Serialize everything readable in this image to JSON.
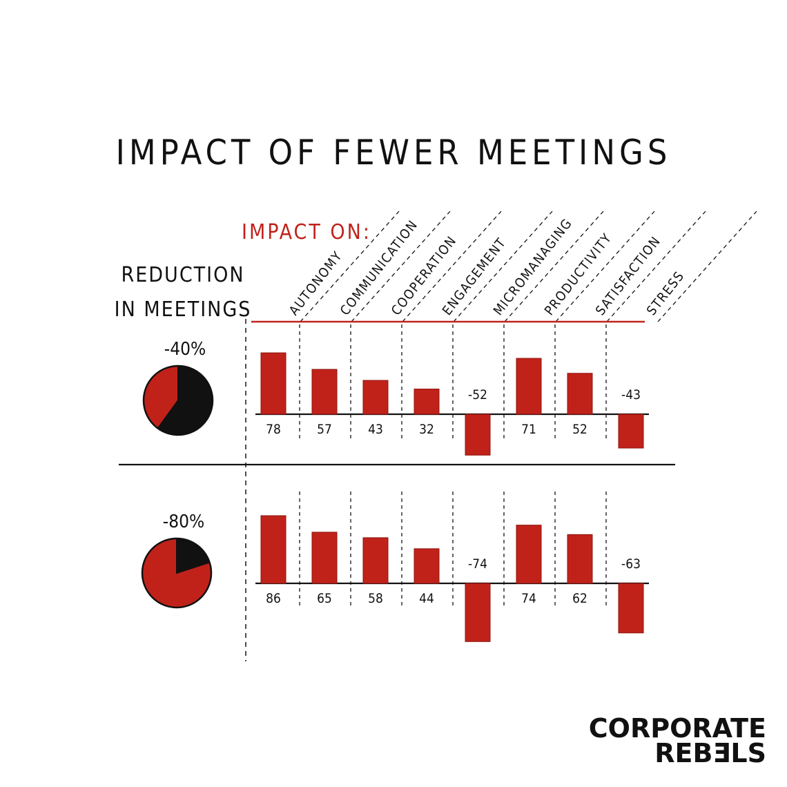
{
  "title": "IMPACT OF FEWER MEETINGS",
  "impact_label": "IMPACT ON:",
  "reduction_label": [
    "REDUCTION",
    "IN MEETINGS"
  ],
  "logo": [
    "CORPORATE",
    "REBƎLS"
  ],
  "colors": {
    "accent": "#c0221a",
    "ink": "#111111",
    "background": "#ffffff"
  },
  "chart_data": [
    {
      "type": "bar",
      "title": "-40%",
      "reduction_pct": 40,
      "categories": [
        "AUTONOMY",
        "COMMUNICATION",
        "COOPERATION",
        "ENGAGEMENT",
        "MICROMANAGING",
        "PRODUCTIVITY",
        "SATISFACTION",
        "STRESS"
      ],
      "values": [
        78,
        57,
        43,
        32,
        -52,
        71,
        52,
        -43
      ],
      "value_labels": [
        "78",
        "57",
        "43",
        "32",
        "-52",
        "71",
        "52",
        "-43"
      ]
    },
    {
      "type": "bar",
      "title": "-80%",
      "reduction_pct": 80,
      "categories": [
        "AUTONOMY",
        "COMMUNICATION",
        "COOPERATION",
        "ENGAGEMENT",
        "MICROMANAGING",
        "PRODUCTIVITY",
        "SATISFACTION",
        "STRESS"
      ],
      "values": [
        86,
        65,
        58,
        44,
        -74,
        74,
        62,
        -63
      ],
      "value_labels": [
        "86",
        "65",
        "58",
        "44",
        "-74",
        "74",
        "62",
        "-63"
      ]
    }
  ]
}
